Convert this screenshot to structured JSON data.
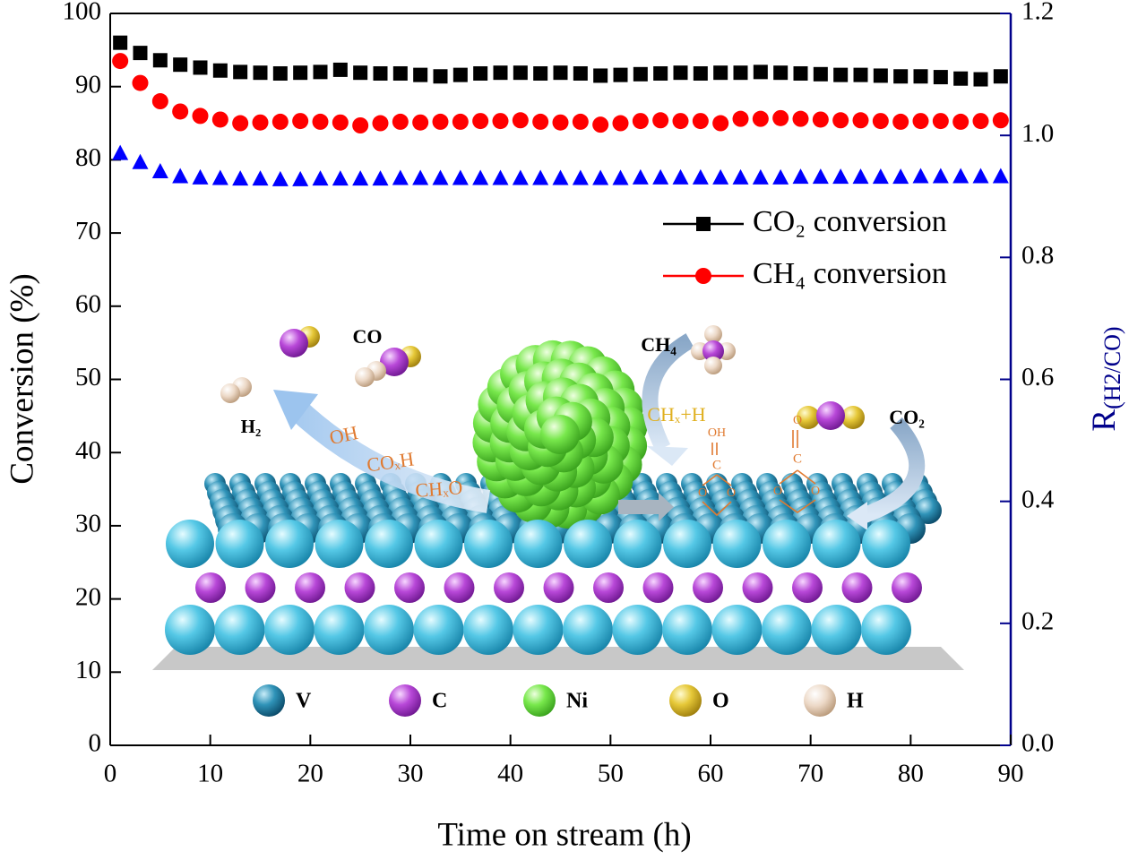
{
  "chart_data": {
    "type": "scatter",
    "xlabel": "Time on stream (h)",
    "ylabel": "Conversion (%)",
    "y2label": {
      "main": "R",
      "sub": "(H2/CO)"
    },
    "xlim": [
      0,
      90
    ],
    "xticks": [
      0,
      10,
      20,
      30,
      40,
      50,
      60,
      70,
      80,
      90
    ],
    "ylim": [
      0,
      100
    ],
    "yticks": [
      0,
      10,
      20,
      30,
      40,
      50,
      60,
      70,
      80,
      90,
      100
    ],
    "y2lim": [
      0,
      1.2
    ],
    "y2ticks": [
      {
        "value": 0,
        "label": "0.0"
      },
      0.2,
      0.4,
      0.6,
      0.8,
      {
        "value": 1,
        "label": "1.0"
      },
      1.2
    ],
    "y2color": "#00008b",
    "legend": "upper right",
    "x": [
      1,
      3,
      5,
      7,
      9,
      11,
      13,
      15,
      17,
      19,
      21,
      23,
      25,
      27,
      29,
      31,
      33,
      35,
      37,
      39,
      41,
      43,
      45,
      47,
      49,
      51,
      53,
      55,
      57,
      59,
      61,
      63,
      65,
      67,
      69,
      71,
      73,
      75,
      77,
      79,
      81,
      83,
      85,
      87,
      89
    ],
    "series": [
      {
        "name": "CO₂ conversion",
        "color": "#000000",
        "marker": "square",
        "legend": true,
        "values": [
          96,
          94.6,
          93.6,
          93,
          92.6,
          92.2,
          92,
          91.9,
          91.8,
          91.9,
          92,
          92.3,
          91.9,
          91.8,
          91.8,
          91.6,
          91.4,
          91.6,
          91.8,
          91.9,
          91.9,
          91.8,
          91.9,
          91.8,
          91.5,
          91.6,
          91.7,
          91.8,
          91.9,
          91.8,
          91.9,
          91.9,
          92,
          91.9,
          91.8,
          91.7,
          91.6,
          91.6,
          91.5,
          91.4,
          91.4,
          91.3,
          91.1,
          91.0,
          91.4
        ]
      },
      {
        "name": "CH₄ conversion",
        "color": "#ff0000",
        "marker": "circle",
        "legend": true,
        "values": [
          93.5,
          90.5,
          88,
          86.6,
          86,
          85.5,
          85,
          85.1,
          85.2,
          85.3,
          85.2,
          85.1,
          84.7,
          85,
          85.2,
          85.1,
          85.2,
          85.2,
          85.3,
          85.3,
          85.4,
          85.2,
          85.1,
          85.2,
          84.8,
          85,
          85.3,
          85.4,
          85.3,
          85.3,
          85.0,
          85.6,
          85.6,
          85.7,
          85.6,
          85.5,
          85.4,
          85.4,
          85.3,
          85.2,
          85.3,
          85.3,
          85.2,
          85.3,
          85.4
        ]
      },
      {
        "color": "#0000ff",
        "marker": "triangle",
        "axis": "y2",
        "legend": false,
        "values": [
          0.97,
          0.955,
          0.94,
          0.932,
          0.93,
          0.929,
          0.928,
          0.928,
          0.927,
          0.927,
          0.928,
          0.928,
          0.928,
          0.928,
          0.929,
          0.929,
          0.929,
          0.929,
          0.929,
          0.929,
          0.929,
          0.929,
          0.929,
          0.929,
          0.929,
          0.929,
          0.93,
          0.93,
          0.93,
          0.93,
          0.93,
          0.93,
          0.93,
          0.93,
          0.931,
          0.931,
          0.931,
          0.931,
          0.931,
          0.931,
          0.932,
          0.932,
          0.932,
          0.932,
          0.932
        ]
      }
    ],
    "inset": {
      "labels": [
        "CO",
        "H₂",
        "CH₄",
        "CO₂",
        "CHₓ+H",
        "OH",
        "COₓH",
        "CHₓO",
        "OH",
        "C",
        "O",
        "O",
        "O",
        "C",
        "O",
        "O"
      ],
      "legend": [
        "V",
        "C",
        "Ni",
        "O",
        "H"
      ]
    }
  }
}
